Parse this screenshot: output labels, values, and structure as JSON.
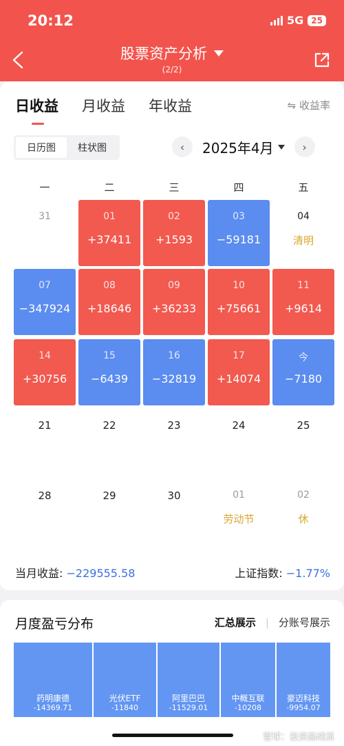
{
  "status": {
    "time": "20:12",
    "network": "5G",
    "battery": "25"
  },
  "nav": {
    "title": "股票资产分析",
    "subtitle": "(2/2)"
  },
  "tabs": [
    "日收益",
    "月收益",
    "年收益"
  ],
  "rate_link": "⇋ 收益率",
  "view_toggle": [
    "日历图",
    "柱状图"
  ],
  "month": "2025年4月",
  "weekdays": [
    "一",
    "二",
    "三",
    "四",
    "五"
  ],
  "calendar": [
    {
      "day": "31",
      "value": "",
      "style": "muted"
    },
    {
      "day": "01",
      "value": "+37411",
      "style": "red"
    },
    {
      "day": "02",
      "value": "+1593",
      "style": "red"
    },
    {
      "day": "03",
      "value": "−59181",
      "style": "blue"
    },
    {
      "day": "04",
      "value": "清明",
      "style": "holiday"
    },
    {
      "day": "07",
      "value": "−347924",
      "style": "blue"
    },
    {
      "day": "08",
      "value": "+18646",
      "style": "red"
    },
    {
      "day": "09",
      "value": "+36233",
      "style": "red"
    },
    {
      "day": "10",
      "value": "+75661",
      "style": "red"
    },
    {
      "day": "11",
      "value": "+9614",
      "style": "red"
    },
    {
      "day": "14",
      "value": "+30756",
      "style": "red"
    },
    {
      "day": "15",
      "value": "−6439",
      "style": "blue"
    },
    {
      "day": "16",
      "value": "−32819",
      "style": "blue"
    },
    {
      "day": "17",
      "value": "+14074",
      "style": "red"
    },
    {
      "day": "今",
      "value": "−7180",
      "style": "blue"
    },
    {
      "day": "21",
      "value": "",
      "style": "plain"
    },
    {
      "day": "22",
      "value": "",
      "style": "plain"
    },
    {
      "day": "23",
      "value": "",
      "style": "plain"
    },
    {
      "day": "24",
      "value": "",
      "style": "plain"
    },
    {
      "day": "25",
      "value": "",
      "style": "plain"
    },
    {
      "day": "28",
      "value": "",
      "style": "plain"
    },
    {
      "day": "29",
      "value": "",
      "style": "plain"
    },
    {
      "day": "30",
      "value": "",
      "style": "plain"
    },
    {
      "day": "01",
      "value": "劳动节",
      "style": "muted holiday"
    },
    {
      "day": "02",
      "value": "休",
      "style": "muted holiday"
    }
  ],
  "summary": {
    "month_label": "当月收益:",
    "month_value": "−229555.58",
    "index_label": "上证指数:",
    "index_value": "−1.77%"
  },
  "distribution": {
    "title": "月度盈亏分布",
    "tab_active": "汇总展示",
    "tab_other": "分账号展示",
    "items": [
      {
        "name": "药明康德",
        "value": "-14369.71"
      },
      {
        "name": "光伏ETF",
        "value": "-11840"
      },
      {
        "name": "阿里巴巴",
        "value": "-11529.01"
      },
      {
        "name": "中概互联",
        "value": "-10208"
      },
      {
        "name": "豪迈科技",
        "value": "-9954.07"
      }
    ]
  },
  "watermark": "雪球：投资画线派",
  "colors": {
    "accent": "#f2544d",
    "gain": "#f2594f",
    "loss": "#5b8cf0",
    "holiday": "#d9a62e"
  }
}
